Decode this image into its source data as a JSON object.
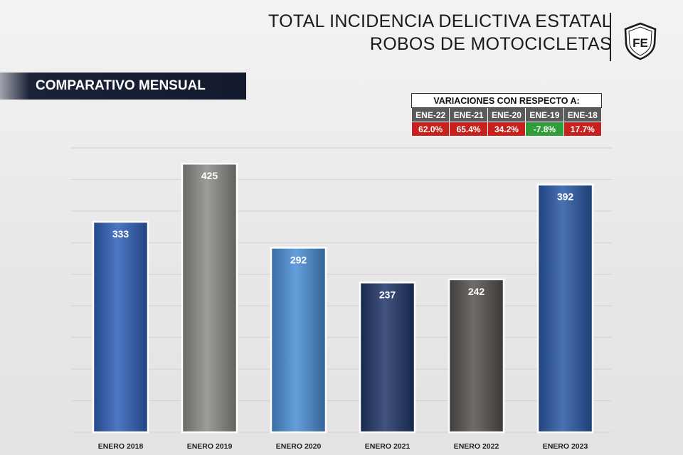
{
  "header": {
    "title_line1": "TOTAL INCIDENCIA DELICTIVA ESTATAL",
    "title_line2": "ROBOS DE MOTOCICLETAS",
    "logo_text": "FE"
  },
  "subtitle": "COMPARATIVO MENSUAL",
  "variations": {
    "heading": "VARIACIONES CON RESPECTO A:",
    "items": [
      {
        "label": "ENE-22",
        "value": "62.0%",
        "color": "#c8201c"
      },
      {
        "label": "ENE-21",
        "value": "65.4%",
        "color": "#c8201c"
      },
      {
        "label": "ENE-20",
        "value": "34.2%",
        "color": "#c8201c"
      },
      {
        "label": "ENE-19",
        "value": "-7.8%",
        "color": "#2f9d3a"
      },
      {
        "label": "ENE-18",
        "value": "17.7%",
        "color": "#c8201c"
      }
    ]
  },
  "chart_data": {
    "type": "bar",
    "title": "COMPARATIVO MENSUAL",
    "categories": [
      "ENERO 2018",
      "ENERO 2019",
      "ENERO 2020",
      "ENERO 2021",
      "ENERO 2022",
      "ENERO 2023"
    ],
    "values": [
      333,
      425,
      292,
      237,
      242,
      392
    ],
    "data_labels": [
      "333",
      "425",
      "292",
      "237",
      "242",
      "392"
    ],
    "bar_colors": [
      "#2f5fb8",
      "#8c8a86",
      "#4a8ed6",
      "#1f3567",
      "#55524e",
      "#2a58a6"
    ],
    "ylim": [
      0,
      450
    ],
    "xlabel": "",
    "ylabel": "",
    "grid": true
  }
}
